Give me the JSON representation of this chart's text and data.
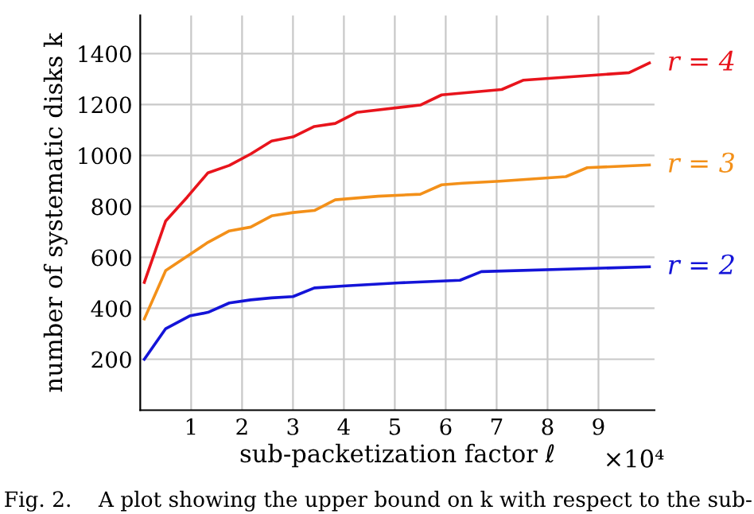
{
  "chart_data": {
    "type": "line",
    "xlabel": "sub-packetization factor ℓ",
    "ylabel": "number of systematic disks k",
    "xlim": [
      0,
      10.1
    ],
    "xticks": [
      1,
      2,
      3,
      4,
      5,
      6,
      7,
      8,
      9
    ],
    "ylim": [
      0,
      1550
    ],
    "yticks": [
      200,
      400,
      600,
      800,
      1000,
      1200,
      1400
    ],
    "grid": true,
    "legend": false,
    "marker": "none",
    "line_style": "solid",
    "annotations": [
      "×10⁴",
      "Fig. 2.    A plot showing the upper bound on k with respect to the sub-"
    ],
    "series": [
      {
        "name": "r = 4",
        "color": "#e8141c",
        "x": [
          0.08,
          0.5,
          0.92,
          1.33,
          1.75,
          2.17,
          2.58,
          3.0,
          3.42,
          3.83,
          4.25,
          5.5,
          5.92,
          7.1,
          7.53,
          9.6,
          10.0
        ],
        "values": [
          502,
          743,
          836,
          932,
          961,
          1006,
          1057,
          1073,
          1114,
          1126,
          1169,
          1198,
          1238,
          1259,
          1296,
          1325,
          1363
        ]
      },
      {
        "name": "r = 3",
        "color": "#f39019",
        "x": [
          0.08,
          0.5,
          0.97,
          1.33,
          1.75,
          2.17,
          2.58,
          3.0,
          3.42,
          3.83,
          4.67,
          5.5,
          5.92,
          6.33,
          7.06,
          8.36,
          8.78,
          10.0
        ],
        "values": [
          358,
          548,
          611,
          659,
          704,
          719,
          763,
          776,
          784,
          826,
          840,
          848,
          885,
          891,
          899,
          917,
          952,
          963
        ]
      },
      {
        "name": "r = 2",
        "color": "#1414d8",
        "x": [
          0.08,
          0.5,
          0.97,
          1.33,
          1.75,
          2.17,
          2.58,
          3.0,
          3.42,
          4.04,
          5.08,
          6.28,
          6.7,
          10.0
        ],
        "values": [
          200,
          320,
          370,
          384,
          421,
          433,
          441,
          446,
          480,
          488,
          500,
          510,
          544,
          563
        ]
      }
    ]
  }
}
